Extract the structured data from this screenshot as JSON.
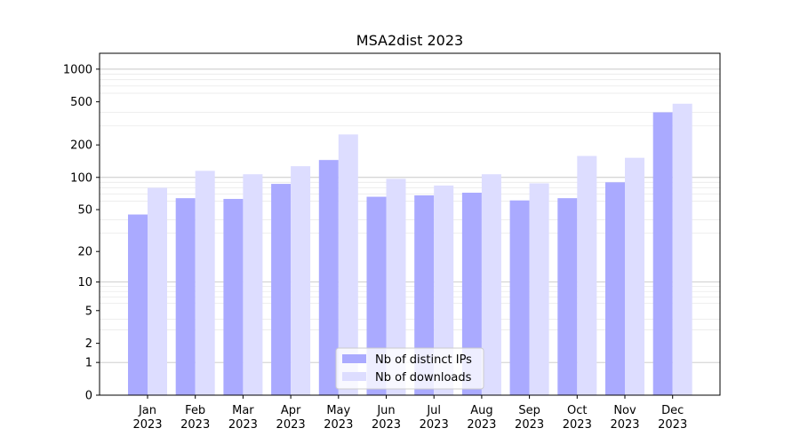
{
  "chart_data": {
    "type": "bar",
    "title": "MSA2dist 2023",
    "xlabel": "",
    "ylabel": "",
    "y_scale": "log(1+y)",
    "y_ticks": [
      0,
      1,
      2,
      5,
      10,
      20,
      50,
      100,
      200,
      500,
      1000
    ],
    "ylim": [
      0,
      1400
    ],
    "grid": true,
    "legend_position": "bottom-center",
    "categories": [
      [
        "Jan",
        "2023"
      ],
      [
        "Feb",
        "2023"
      ],
      [
        "Mar",
        "2023"
      ],
      [
        "Apr",
        "2023"
      ],
      [
        "May",
        "2023"
      ],
      [
        "Jun",
        "2023"
      ],
      [
        "Jul",
        "2023"
      ],
      [
        "Aug",
        "2023"
      ],
      [
        "Sep",
        "2023"
      ],
      [
        "Oct",
        "2023"
      ],
      [
        "Nov",
        "2023"
      ],
      [
        "Dec",
        "2023"
      ]
    ],
    "series": [
      {
        "name": "Nb of distinct IPs",
        "color": "#aaaaff",
        "values": [
          45,
          64,
          63,
          87,
          145,
          66,
          68,
          72,
          61,
          64,
          90,
          400
        ]
      },
      {
        "name": "Nb of downloads",
        "color": "#ddddff",
        "values": [
          80,
          115,
          107,
          127,
          250,
          97,
          84,
          107,
          88,
          158,
          152,
          480
        ]
      }
    ]
  }
}
